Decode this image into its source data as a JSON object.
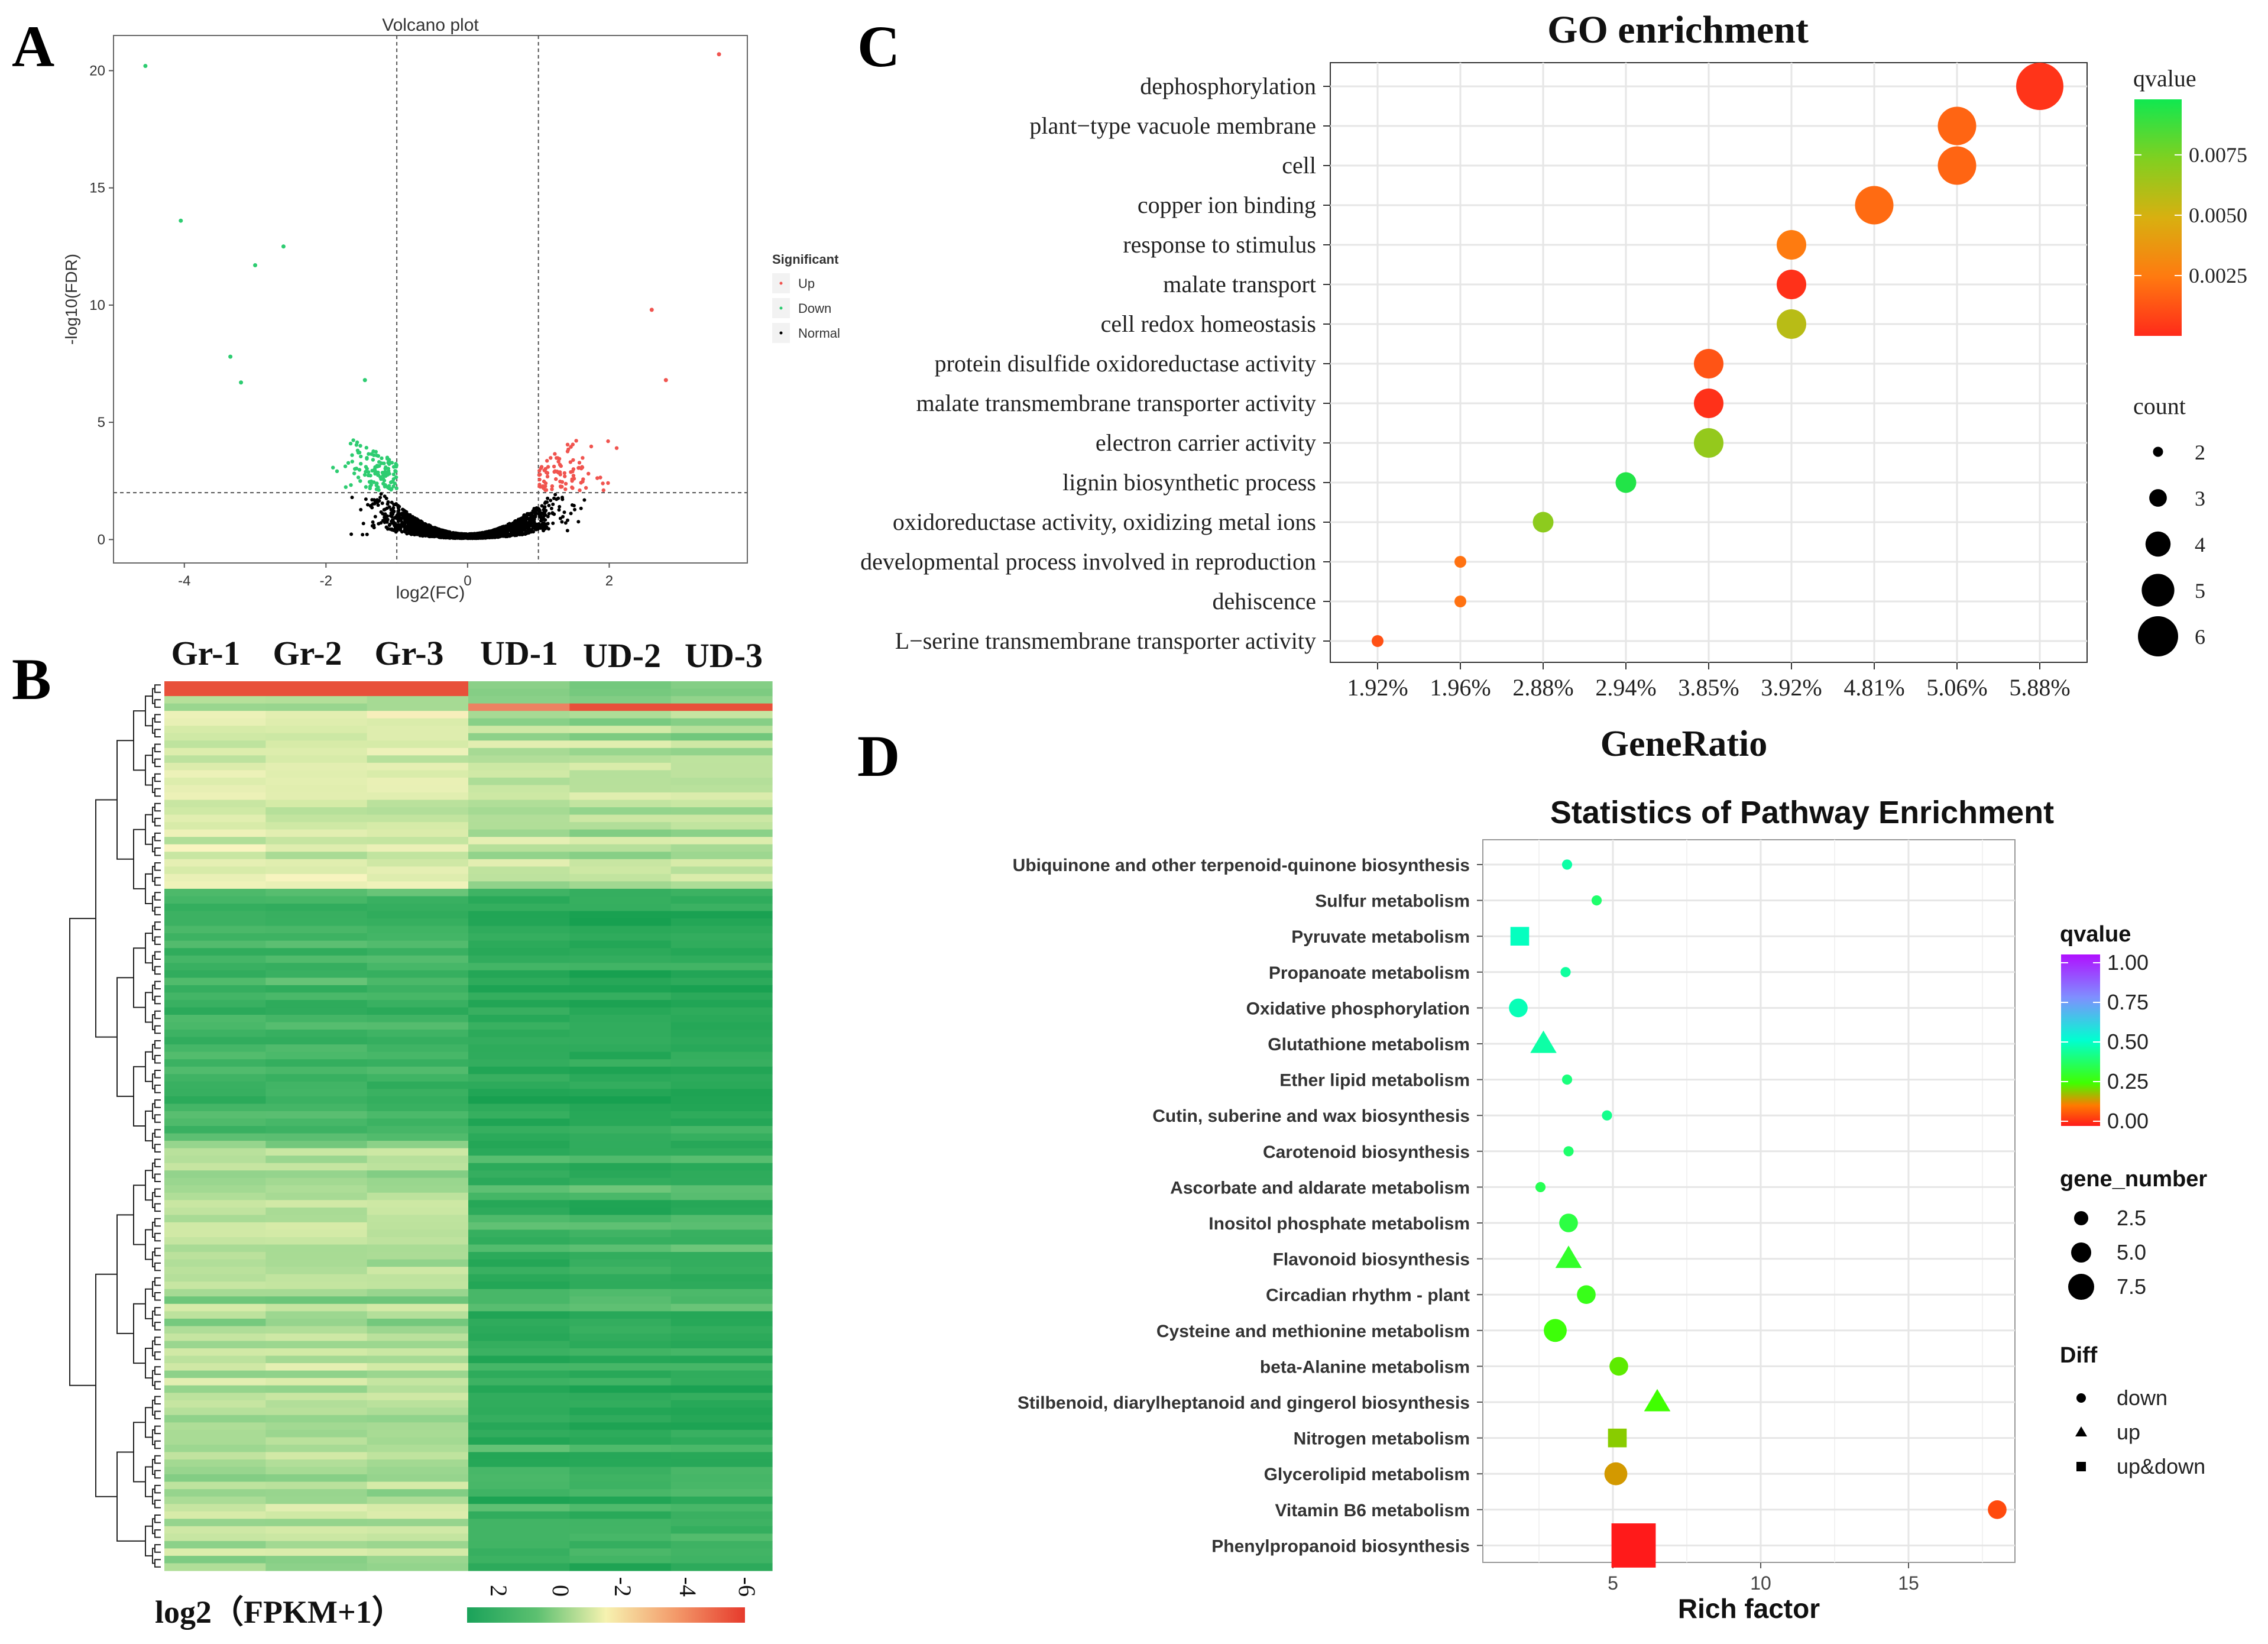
{
  "panels": {
    "a": "A",
    "b": "B",
    "c": "C",
    "d": "D"
  },
  "colors": {
    "up": "#f0544f",
    "down": "#2ecc71",
    "normal": "#000000",
    "grid": "#e6e6e6"
  },
  "volcano": {
    "title": "Volcano plot",
    "xlabel": "log2(FC)",
    "ylabel": "-log10(FDR)",
    "xticks": [
      -4,
      -2,
      0,
      2
    ],
    "yticks": [
      0,
      5,
      10,
      15,
      20
    ],
    "xlim": [
      -5.0,
      3.95
    ],
    "ylim": [
      -1.0,
      21.5
    ],
    "vlines": [
      -1,
      1
    ],
    "hline": 2,
    "legend_title": "Significant",
    "legend": [
      "Up",
      "Down",
      "Normal"
    ],
    "highlights": [
      {
        "x": -4.55,
        "y": 20.2,
        "g": "down"
      },
      {
        "x": 3.55,
        "y": 20.7,
        "g": "up"
      },
      {
        "x": -4.05,
        "y": 13.6,
        "g": "down"
      },
      {
        "x": -3.0,
        "y": 11.7,
        "g": "down"
      },
      {
        "x": -2.6,
        "y": 12.5,
        "g": "down"
      },
      {
        "x": -3.35,
        "y": 7.8,
        "g": "down"
      },
      {
        "x": -3.2,
        "y": 6.7,
        "g": "down"
      },
      {
        "x": 2.6,
        "y": 9.8,
        "g": "up"
      },
      {
        "x": 2.8,
        "y": 6.8,
        "g": "up"
      },
      {
        "x": -1.45,
        "y": 6.8,
        "g": "down"
      }
    ]
  },
  "heatmap": {
    "columns": [
      "Gr-1",
      "Gr-2",
      "Gr-3",
      "UD-1",
      "UD-2",
      "UD-3"
    ],
    "legend_label": "log2（FPKM+1）",
    "scale_ticks": [
      "-6",
      "-4",
      "-2",
      "0",
      "2"
    ],
    "rows": 120
  },
  "chart_data": [
    {
      "type": "scatter",
      "title": "GO enrichment",
      "xlabel": "GeneRatio",
      "ylabel": "",
      "categories_x": [
        "1.92%",
        "1.96%",
        "2.88%",
        "2.94%",
        "3.85%",
        "3.92%",
        "4.81%",
        "5.06%",
        "5.88%"
      ],
      "terms": [
        "dephosphorylation",
        "plant−type vacuole membrane",
        "cell",
        "copper ion binding",
        "response to stimulus",
        "malate transport",
        "cell redox homeostasis",
        "protein disulfide oxidoreductase activity",
        "malate transmembrane transporter activity",
        "electron carrier activity",
        "lignin biosynthetic process",
        "oxidoreductase activity, oxidizing metal ions",
        "developmental process involved in reproduction",
        "dehiscence",
        "L−serine transmembrane transporter activity"
      ],
      "points": [
        {
          "term": "dephosphorylation",
          "x": "5.88%",
          "count": 6,
          "qvalue": 0.0003
        },
        {
          "term": "plant−type vacuole membrane",
          "x": "5.06%",
          "count": 5,
          "qvalue": 0.0018
        },
        {
          "term": "cell",
          "x": "5.06%",
          "count": 5,
          "qvalue": 0.0018
        },
        {
          "term": "copper ion binding",
          "x": "4.81%",
          "count": 5,
          "qvalue": 0.002
        },
        {
          "term": "response to stimulus",
          "x": "3.92%",
          "count": 4,
          "qvalue": 0.0025
        },
        {
          "term": "malate transport",
          "x": "3.92%",
          "count": 4,
          "qvalue": 0.0002
        },
        {
          "term": "cell redox homeostasis",
          "x": "3.92%",
          "count": 4,
          "qvalue": 0.0058
        },
        {
          "term": "protein disulfide oxidoreductase activity",
          "x": "3.85%",
          "count": 4,
          "qvalue": 0.0013
        },
        {
          "term": "malate transmembrane transporter activity",
          "x": "3.85%",
          "count": 4,
          "qvalue": 0.0002
        },
        {
          "term": "electron carrier activity",
          "x": "3.85%",
          "count": 4,
          "qvalue": 0.0068
        },
        {
          "term": "lignin biosynthetic process",
          "x": "2.94%",
          "count": 3,
          "qvalue": 0.0094
        },
        {
          "term": "oxidoreductase activity, oxidizing metal ions",
          "x": "2.88%",
          "count": 3,
          "qvalue": 0.007
        },
        {
          "term": "developmental process involved in reproduction",
          "x": "1.96%",
          "count": 2,
          "qvalue": 0.0022
        },
        {
          "term": "dehiscence",
          "x": "1.96%",
          "count": 2,
          "qvalue": 0.0022
        },
        {
          "term": "L−serine transmembrane transporter activity",
          "x": "1.92%",
          "count": 2,
          "qvalue": 0.0012
        }
      ],
      "legend": {
        "color_title": "qvalue",
        "color_ticks": [
          "0.0075",
          "0.0050",
          "0.0025"
        ],
        "color_tick_values": [
          0.0075,
          0.005,
          0.0025
        ],
        "color_range": [
          0.0,
          0.0098
        ],
        "size_title": "count",
        "size_ticks": [
          2,
          3,
          4,
          5,
          6
        ]
      }
    },
    {
      "type": "scatter",
      "title": "Statistics of Pathway Enrichment",
      "xlabel": "Rich factor",
      "ylabel": "",
      "xlim": [
        0.6,
        18.6
      ],
      "xticks": [
        5,
        10,
        15
      ],
      "pathways": [
        "Ubiquinone and other terpenoid-quinone biosynthesis",
        "Sulfur metabolism",
        "Pyruvate metabolism",
        "Propanoate metabolism",
        "Oxidative phosphorylation",
        "Glutathione metabolism",
        "Ether lipid metabolism",
        "Cutin, suberine and wax biosynthesis",
        "Carotenoid biosynthesis",
        "Ascorbate and aldarate metabolism",
        "Inositol phosphate metabolism",
        "Flavonoid biosynthesis",
        "Circadian rhythm - plant",
        "Cysteine and methionine metabolism",
        "beta-Alanine metabolism",
        "Stilbenoid, diarylheptanoid and gingerol biosynthesis",
        "Nitrogen metabolism",
        "Glycerolipid metabolism",
        "Vitamin B6 metabolism",
        "Phenylpropanoid biosynthesis"
      ],
      "points": [
        {
          "x": 3.45,
          "genes": 1,
          "q": 0.45,
          "diff": "down"
        },
        {
          "x": 4.45,
          "genes": 1,
          "q": 0.38,
          "diff": "down"
        },
        {
          "x": 1.85,
          "genes": 3,
          "q": 0.48,
          "diff": "up&down"
        },
        {
          "x": 3.4,
          "genes": 1,
          "q": 0.44,
          "diff": "down"
        },
        {
          "x": 1.8,
          "genes": 3,
          "q": 0.47,
          "diff": "down"
        },
        {
          "x": 2.65,
          "genes": 4,
          "q": 0.45,
          "diff": "up"
        },
        {
          "x": 3.45,
          "genes": 1,
          "q": 0.4,
          "diff": "down"
        },
        {
          "x": 4.8,
          "genes": 1,
          "q": 0.42,
          "diff": "down"
        },
        {
          "x": 3.5,
          "genes": 1,
          "q": 0.38,
          "diff": "down"
        },
        {
          "x": 2.55,
          "genes": 1,
          "q": 0.35,
          "diff": "down"
        },
        {
          "x": 3.5,
          "genes": 3,
          "q": 0.33,
          "diff": "down"
        },
        {
          "x": 3.5,
          "genes": 4,
          "q": 0.3,
          "diff": "up"
        },
        {
          "x": 4.1,
          "genes": 3,
          "q": 0.28,
          "diff": "down"
        },
        {
          "x": 3.05,
          "genes": 4,
          "q": 0.26,
          "diff": "down"
        },
        {
          "x": 5.2,
          "genes": 3,
          "q": 0.23,
          "diff": "down"
        },
        {
          "x": 6.5,
          "genes": 4,
          "q": 0.25,
          "diff": "up"
        },
        {
          "x": 5.15,
          "genes": 3,
          "q": 0.2,
          "diff": "up&down"
        },
        {
          "x": 5.1,
          "genes": 4,
          "q": 0.15,
          "diff": "down"
        },
        {
          "x": 18.0,
          "genes": 3,
          "q": 0.06,
          "diff": "down"
        },
        {
          "x": 5.7,
          "genes": 9,
          "q": 0.0,
          "diff": "up&down"
        }
      ],
      "legend": {
        "color_title": "qvalue",
        "color_ticks": [
          "1.00",
          "0.75",
          "0.50",
          "0.25",
          "0.00"
        ],
        "size_title": "gene_number",
        "size_ticks": [
          "2.5",
          "5.0",
          "7.5"
        ],
        "shape_title": "Diff",
        "shape_labels": [
          "down",
          "up",
          "up&down"
        ]
      }
    }
  ]
}
